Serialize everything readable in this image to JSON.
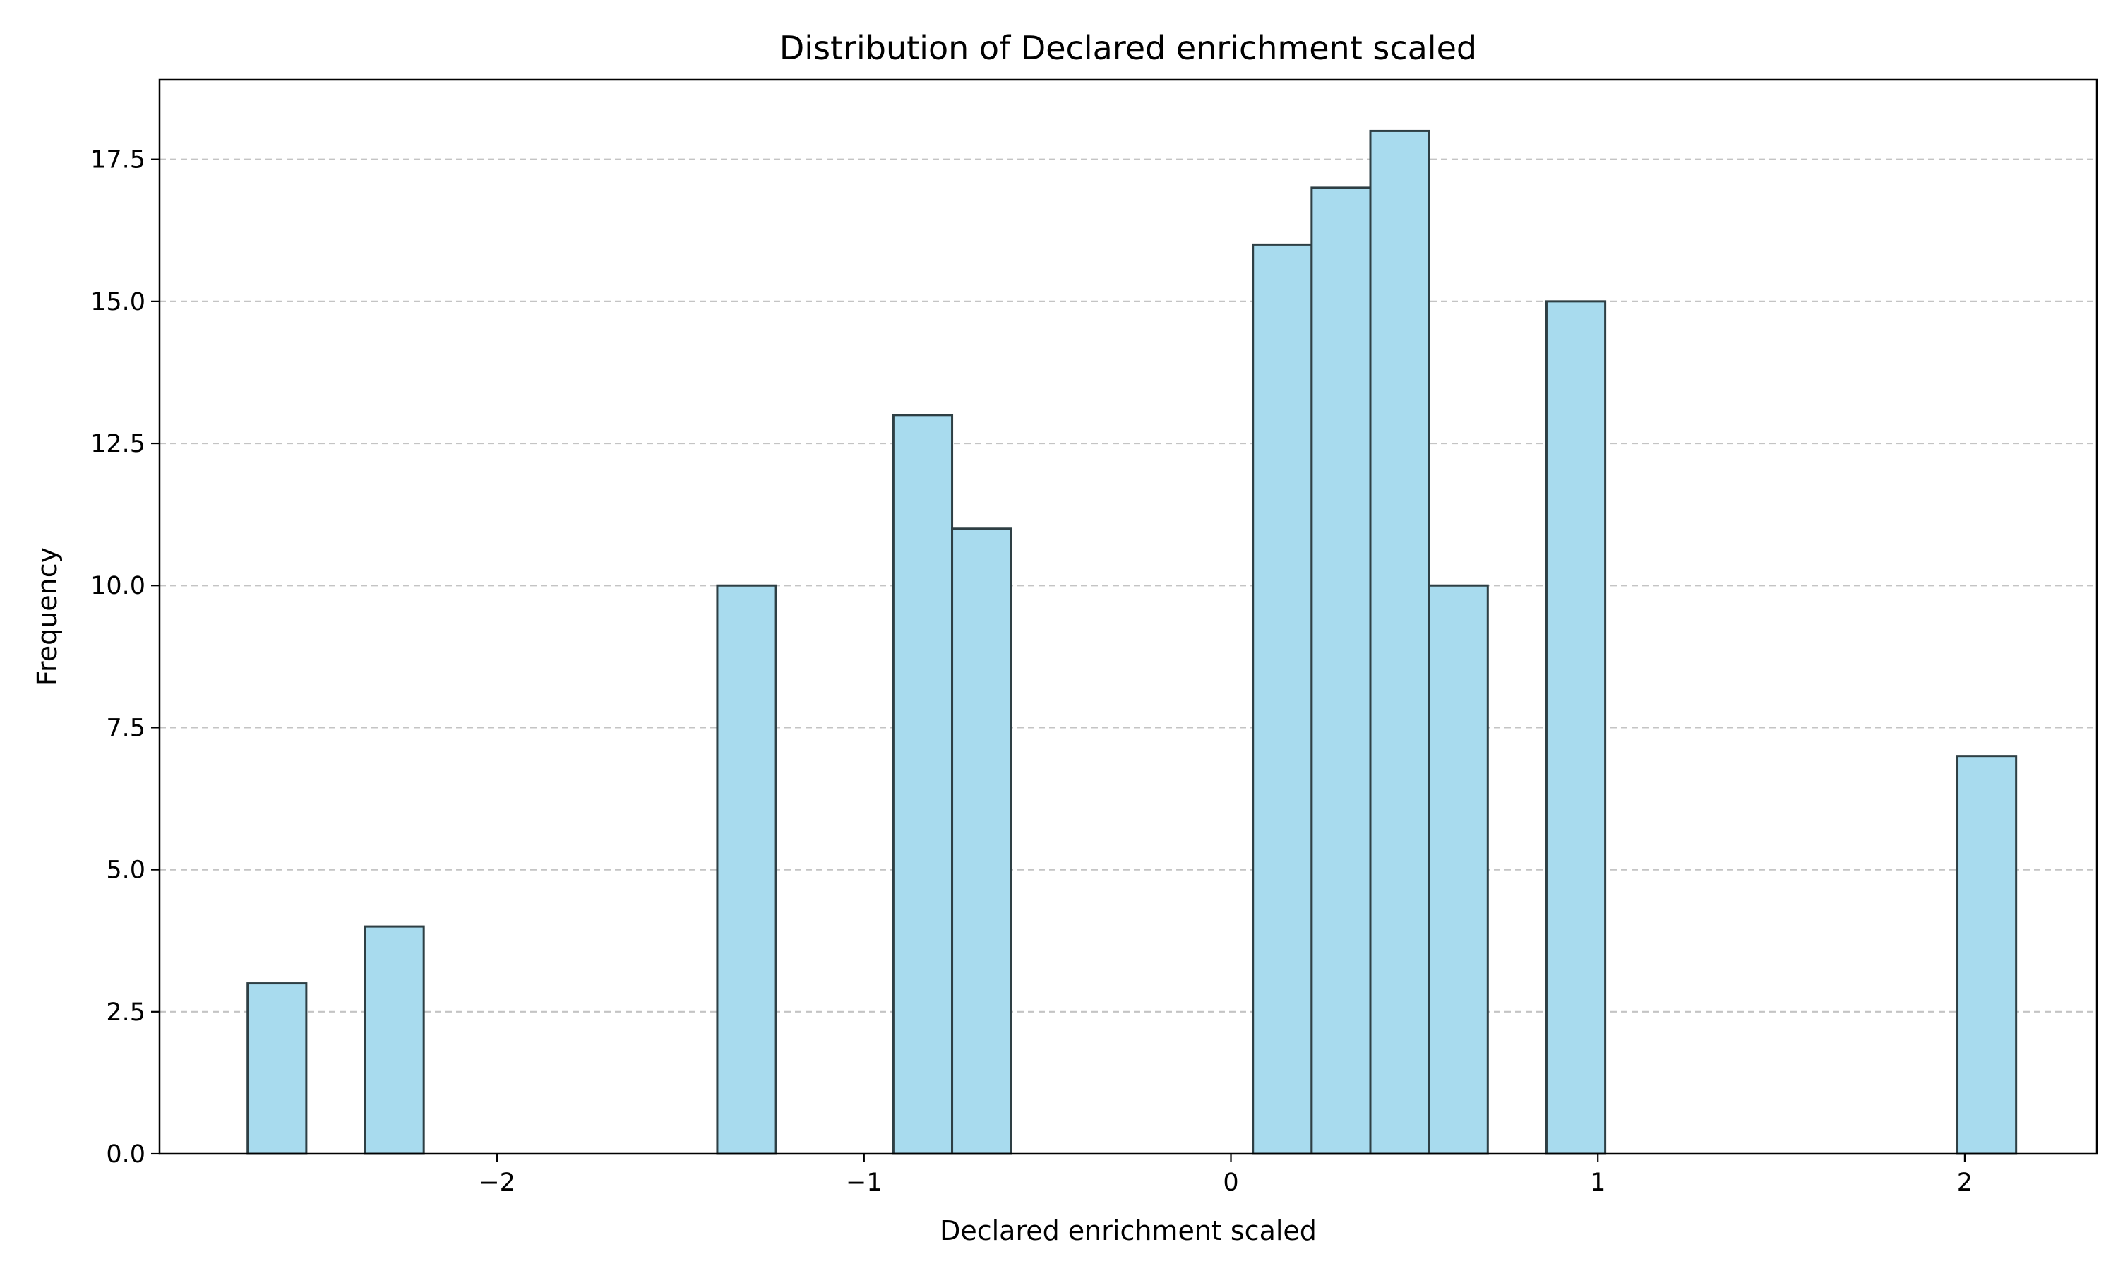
{
  "chart_data": {
    "type": "bar",
    "title": "Distribution of Declared enrichment scaled",
    "xlabel": "Declared enrichment scaled",
    "ylabel": "Frequency",
    "xlim": [
      -2.92,
      2.36
    ],
    "ylim": [
      0,
      18.9
    ],
    "x_ticks": [
      -2,
      -1,
      0,
      1,
      2
    ],
    "x_tick_labels": [
      "−2",
      "−1",
      "0",
      "1",
      "2"
    ],
    "y_ticks": [
      0,
      2.5,
      5,
      7.5,
      10,
      12.5,
      15,
      17.5
    ],
    "y_tick_labels": [
      "0.0",
      "2.5",
      "5.0",
      "7.5",
      "10.0",
      "12.5",
      "15.0",
      "17.5"
    ],
    "grid": {
      "axis": "y",
      "style": "dashed"
    },
    "bar_color": "#a8dbee",
    "edge_color": "#2e3f44",
    "grid_color": "#c4c4c4",
    "bins": [
      {
        "x0": -2.68,
        "x1": -2.52,
        "count": 3
      },
      {
        "x0": -2.36,
        "x1": -2.2,
        "count": 4
      },
      {
        "x0": -1.4,
        "x1": -1.24,
        "count": 10
      },
      {
        "x0": -0.92,
        "x1": -0.76,
        "count": 13
      },
      {
        "x0": -0.76,
        "x1": -0.6,
        "count": 11
      },
      {
        "x0": 0.06,
        "x1": 0.22,
        "count": 16
      },
      {
        "x0": 0.22,
        "x1": 0.38,
        "count": 17
      },
      {
        "x0": 0.38,
        "x1": 0.54,
        "count": 18
      },
      {
        "x0": 0.54,
        "x1": 0.7,
        "count": 10
      },
      {
        "x0": 0.86,
        "x1": 1.02,
        "count": 15
      },
      {
        "x0": 1.98,
        "x1": 2.14,
        "count": 7
      }
    ]
  }
}
